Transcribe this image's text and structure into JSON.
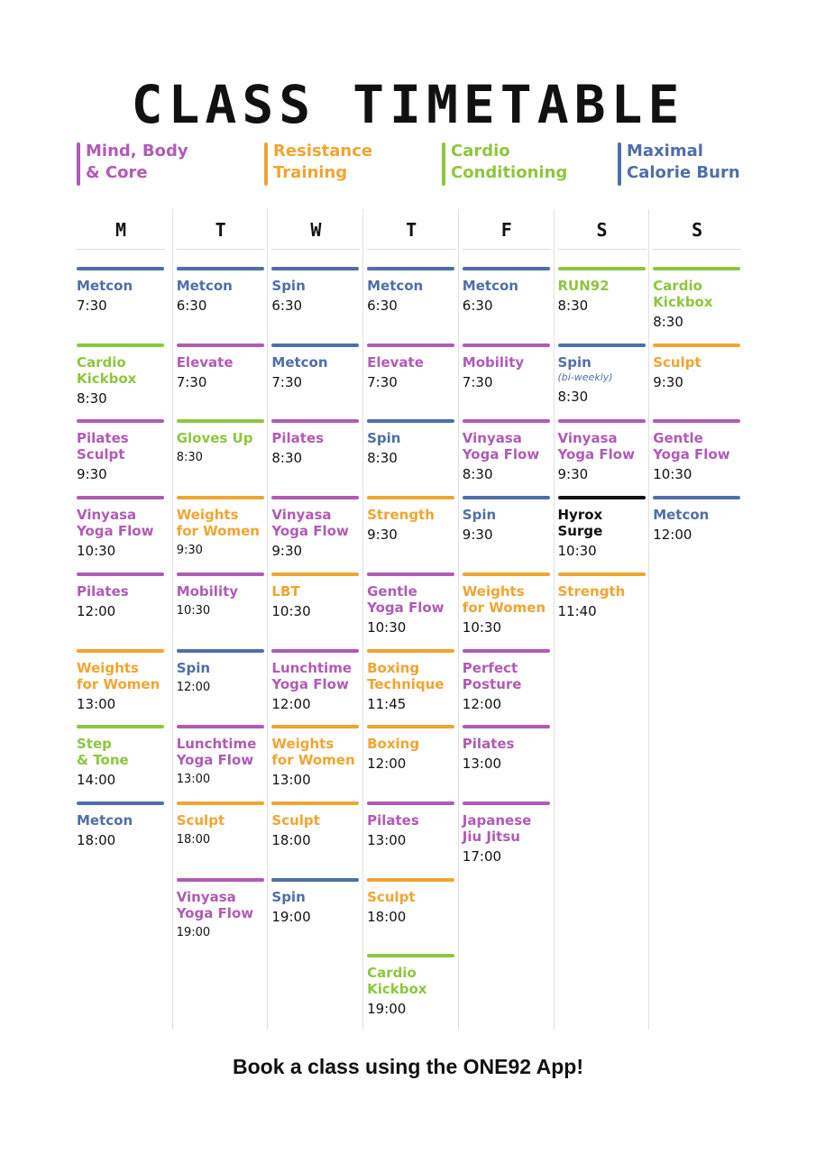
{
  "title": "CLASS TIMETABLE",
  "colors": {
    "mind": "#b05bb5",
    "resistance": "#f0a531",
    "cardio": "#8dc63f",
    "calorie": "#4f6fa8",
    "black": "#111111"
  },
  "legend": [
    {
      "line1": "Mind, Body",
      "line2": "& Core",
      "color": "#b05bb5"
    },
    {
      "line1": "Resistance",
      "line2": "Training",
      "color": "#f0a531"
    },
    {
      "line1": "Cardio",
      "line2": "Conditioning",
      "color": "#8dc63f"
    },
    {
      "line1": "Maximal",
      "line2": "Calorie Burn",
      "color": "#4f6fa8"
    }
  ],
  "days": [
    {
      "label": "M",
      "classes": [
        {
          "lines": [
            "Metcon"
          ],
          "time": "7:30",
          "color": "#4f6fa8"
        },
        {
          "lines": [
            "Cardio",
            "Kickbox"
          ],
          "time": "8:30",
          "color": "#8dc63f"
        },
        {
          "lines": [
            "Pilates",
            "Sculpt"
          ],
          "time": "9:30",
          "color": "#b05bb5"
        },
        {
          "lines": [
            "Vinyasa",
            "Yoga Flow"
          ],
          "time": "10:30",
          "color": "#b05bb5"
        },
        {
          "lines": [
            "Pilates"
          ],
          "time": "12:00",
          "color": "#b05bb5"
        },
        {
          "lines": [
            "Weights",
            "for Women"
          ],
          "time": "13:00",
          "color": "#f0a531"
        },
        {
          "lines": [
            "Step",
            "& Tone"
          ],
          "time": "14:00",
          "color": "#8dc63f"
        },
        {
          "lines": [
            "Metcon"
          ],
          "time": "18:00",
          "color": "#4f6fa8"
        }
      ]
    },
    {
      "label": "T",
      "classes": [
        {
          "lines": [
            "Metcon"
          ],
          "time": "6:30",
          "color": "#4f6fa8"
        },
        {
          "lines": [
            "Elevate"
          ],
          "time": "7:30",
          "color": "#b05bb5"
        },
        {
          "lines": [
            "Gloves Up"
          ],
          "time": "8:30",
          "color": "#8dc63f",
          "small": true
        },
        {
          "lines": [
            "Weights",
            "for Women"
          ],
          "time": "9:30",
          "color": "#f0a531",
          "small": true
        },
        {
          "lines": [
            "Mobility"
          ],
          "time": "10:30",
          "color": "#b05bb5",
          "small": true
        },
        {
          "lines": [
            "Spin"
          ],
          "time": "12:00",
          "color": "#4f6fa8",
          "small": true
        },
        {
          "lines": [
            "Lunchtime",
            "Yoga Flow"
          ],
          "time": "13:00",
          "color": "#b05bb5",
          "small": true
        },
        {
          "lines": [
            "Sculpt"
          ],
          "time": "18:00",
          "color": "#f0a531",
          "small": true
        },
        {
          "lines": [
            "Vinyasa",
            "Yoga Flow"
          ],
          "time": "19:00",
          "color": "#b05bb5",
          "small": true
        }
      ]
    },
    {
      "label": "W",
      "classes": [
        {
          "lines": [
            "Spin"
          ],
          "time": "6:30",
          "color": "#4f6fa8"
        },
        {
          "lines": [
            "Metcon"
          ],
          "time": "7:30",
          "color": "#4f6fa8"
        },
        {
          "lines": [
            "Pilates"
          ],
          "time": "8:30",
          "color": "#b05bb5"
        },
        {
          "lines": [
            "Vinyasa",
            "Yoga Flow"
          ],
          "time": "9:30",
          "color": "#b05bb5"
        },
        {
          "lines": [
            "LBT"
          ],
          "time": "10:30",
          "color": "#f0a531"
        },
        {
          "lines": [
            "Lunchtime",
            "Yoga Flow"
          ],
          "time": "12:00",
          "color": "#b05bb5"
        },
        {
          "lines": [
            "Weights",
            "for Women"
          ],
          "time": "13:00",
          "color": "#f0a531"
        },
        {
          "lines": [
            "Sculpt"
          ],
          "time": "18:00",
          "color": "#f0a531"
        },
        {
          "lines": [
            "Spin"
          ],
          "time": "19:00",
          "color": "#4f6fa8"
        }
      ]
    },
    {
      "label": "T",
      "classes": [
        {
          "lines": [
            "Metcon"
          ],
          "time": "6:30",
          "color": "#4f6fa8"
        },
        {
          "lines": [
            "Elevate"
          ],
          "time": "7:30",
          "color": "#b05bb5"
        },
        {
          "lines": [
            "Spin"
          ],
          "time": "8:30",
          "color": "#4f6fa8"
        },
        {
          "lines": [
            "Strength"
          ],
          "time": "9:30",
          "color": "#f0a531"
        },
        {
          "lines": [
            "Gentle",
            "Yoga Flow"
          ],
          "time": "10:30",
          "color": "#b05bb5"
        },
        {
          "lines": [
            "Boxing",
            "Technique"
          ],
          "time": "11:45",
          "color": "#f0a531"
        },
        {
          "lines": [
            "Boxing"
          ],
          "time": "12:00",
          "color": "#f0a531"
        },
        {
          "lines": [
            "Pilates"
          ],
          "time": "13:00",
          "color": "#b05bb5"
        },
        {
          "lines": [
            "Sculpt"
          ],
          "time": "18:00",
          "color": "#f0a531"
        },
        {
          "lines": [
            "Cardio",
            "Kickbox"
          ],
          "time": "19:00",
          "color": "#8dc63f"
        }
      ]
    },
    {
      "label": "F",
      "classes": [
        {
          "lines": [
            "Metcon"
          ],
          "time": "6:30",
          "color": "#4f6fa8"
        },
        {
          "lines": [
            "Mobility"
          ],
          "time": "7:30",
          "color": "#b05bb5"
        },
        {
          "lines": [
            "Vinyasa",
            "Yoga Flow"
          ],
          "time": "8:30",
          "color": "#b05bb5"
        },
        {
          "lines": [
            "Spin"
          ],
          "time": "9:30",
          "color": "#4f6fa8"
        },
        {
          "lines": [
            "Weights",
            "for Women"
          ],
          "time": "10:30",
          "color": "#f0a531"
        },
        {
          "lines": [
            "Perfect",
            "Posture"
          ],
          "time": "12:00",
          "color": "#b05bb5"
        },
        {
          "lines": [
            "Pilates"
          ],
          "time": "13:00",
          "color": "#b05bb5"
        },
        {
          "lines": [
            "Japanese",
            "Jiu Jitsu"
          ],
          "time": "17:00",
          "color": "#b05bb5"
        }
      ]
    },
    {
      "label": "S",
      "classes": [
        {
          "lines": [
            "RUN92"
          ],
          "time": "8:30",
          "color": "#8dc63f"
        },
        {
          "lines": [
            "Spin"
          ],
          "sub": "(bi-weekly)",
          "time": "8:30",
          "color": "#4f6fa8"
        },
        {
          "lines": [
            "Vinyasa",
            "Yoga Flow"
          ],
          "time": "9:30",
          "color": "#b05bb5"
        },
        {
          "lines": [
            "Hyrox",
            "Surge"
          ],
          "time": "10:30",
          "color": "#111111"
        },
        {
          "lines": [
            "Strength"
          ],
          "time": "11:40",
          "color": "#f0a531"
        }
      ]
    },
    {
      "label": "S",
      "classes": [
        {
          "lines": [
            "Cardio",
            "Kickbox"
          ],
          "time": "8:30",
          "color": "#8dc63f"
        },
        {
          "lines": [
            "Sculpt"
          ],
          "time": "9:30",
          "color": "#f0a531"
        },
        {
          "lines": [
            "Gentle",
            "Yoga Flow"
          ],
          "time": "10:30",
          "color": "#b05bb5"
        },
        {
          "lines": [
            "Metcon"
          ],
          "time": "12:00",
          "color": "#4f6fa8"
        }
      ]
    }
  ],
  "footer": "Book a class using the ONE92 App!"
}
